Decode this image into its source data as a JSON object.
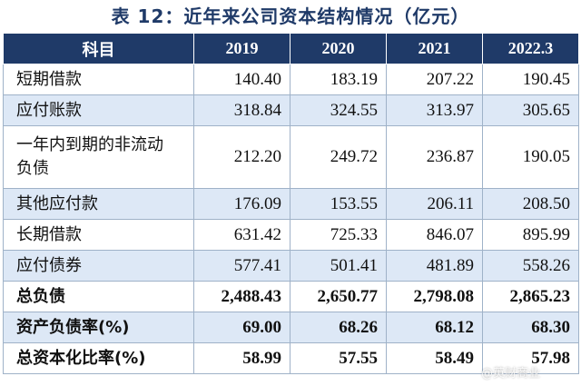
{
  "title": "表 12：近年来公司资本结构情况（亿元）",
  "header": [
    "科目",
    "2019",
    "2020",
    "2021",
    "2022.3"
  ],
  "rows": [
    {
      "name": "短期借款",
      "values": [
        "140.40",
        "183.19",
        "207.22",
        "190.45"
      ]
    },
    {
      "name": "应付账款",
      "values": [
        "318.84",
        "324.55",
        "313.97",
        "305.65"
      ]
    },
    {
      "name": "一年内到期的非流动负债",
      "values": [
        "212.20",
        "249.72",
        "236.87",
        "190.05"
      ]
    },
    {
      "name": "其他应付款",
      "values": [
        "176.09",
        "153.55",
        "206.11",
        "208.50"
      ]
    },
    {
      "name": "长期借款",
      "values": [
        "631.42",
        "725.33",
        "846.07",
        "895.99"
      ]
    },
    {
      "name": "应付债券",
      "values": [
        "577.41",
        "501.41",
        "481.89",
        "558.26"
      ]
    },
    {
      "name": "总负债",
      "values": [
        "2,488.43",
        "2,650.77",
        "2,798.08",
        "2,865.23"
      ]
    },
    {
      "name": "资产负债率(%)",
      "values": [
        "69.00",
        "68.26",
        "68.12",
        "68.30"
      ]
    },
    {
      "name": "总资本化比率(%)",
      "values": [
        "58.99",
        "57.55",
        "58.49",
        "57.98"
      ]
    }
  ],
  "watermark": "@英财商业"
}
